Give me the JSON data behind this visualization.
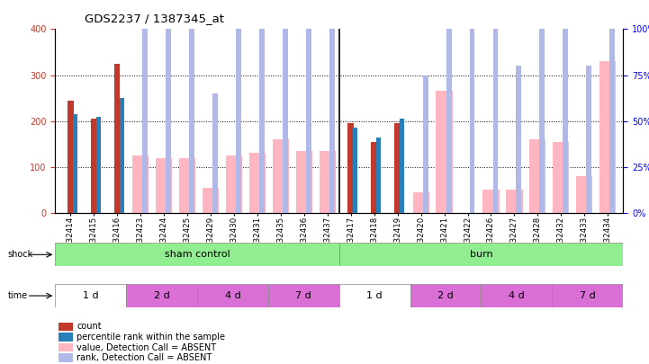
{
  "title": "GDS2237 / 1387345_at",
  "samples": [
    "GSM32414",
    "GSM32415",
    "GSM32416",
    "GSM32423",
    "GSM32424",
    "GSM32425",
    "GSM32429",
    "GSM32430",
    "GSM32431",
    "GSM32435",
    "GSM32436",
    "GSM32437",
    "GSM32417",
    "GSM32418",
    "GSM32419",
    "GSM32420",
    "GSM32421",
    "GSM32422",
    "GSM32426",
    "GSM32427",
    "GSM32428",
    "GSM32432",
    "GSM32433",
    "GSM32434"
  ],
  "count": [
    245,
    205,
    325,
    null,
    null,
    null,
    null,
    null,
    null,
    null,
    null,
    null,
    195,
    155,
    195,
    null,
    null,
    null,
    null,
    null,
    null,
    null,
    null,
    null
  ],
  "percentile_rank": [
    215,
    210,
    250,
    null,
    null,
    null,
    null,
    null,
    null,
    null,
    null,
    null,
    185,
    165,
    205,
    null,
    null,
    null,
    null,
    null,
    null,
    null,
    null,
    null
  ],
  "value_absent": [
    null,
    null,
    null,
    125,
    120,
    120,
    55,
    125,
    130,
    160,
    135,
    135,
    null,
    null,
    null,
    45,
    265,
    null,
    50,
    50,
    160,
    155,
    80,
    330
  ],
  "rank_absent": [
    null,
    null,
    null,
    150,
    120,
    115,
    65,
    145,
    165,
    175,
    165,
    180,
    null,
    null,
    null,
    75,
    230,
    200,
    120,
    80,
    175,
    185,
    80,
    255
  ],
  "ylim_left": [
    0,
    400
  ],
  "ylim_right": [
    0,
    100
  ],
  "yticks_left": [
    0,
    100,
    200,
    300,
    400
  ],
  "yticks_right": [
    0,
    25,
    50,
    75,
    100
  ],
  "color_count": "#c0392b",
  "color_percentile": "#2980b9",
  "color_value_absent": "#FFB6C1",
  "color_rank_absent": "#b0b8e8",
  "plot_bg": "#ffffff",
  "time_data": [
    [
      0,
      3,
      "1 d",
      "#ffffff"
    ],
    [
      3,
      6,
      "2 d",
      "#DA70D6"
    ],
    [
      6,
      9,
      "4 d",
      "#DA70D6"
    ],
    [
      9,
      12,
      "7 d",
      "#DA70D6"
    ],
    [
      12,
      15,
      "1 d",
      "#ffffff"
    ],
    [
      15,
      18,
      "2 d",
      "#DA70D6"
    ],
    [
      18,
      21,
      "4 d",
      "#DA70D6"
    ],
    [
      21,
      24,
      "7 d",
      "#DA70D6"
    ]
  ]
}
